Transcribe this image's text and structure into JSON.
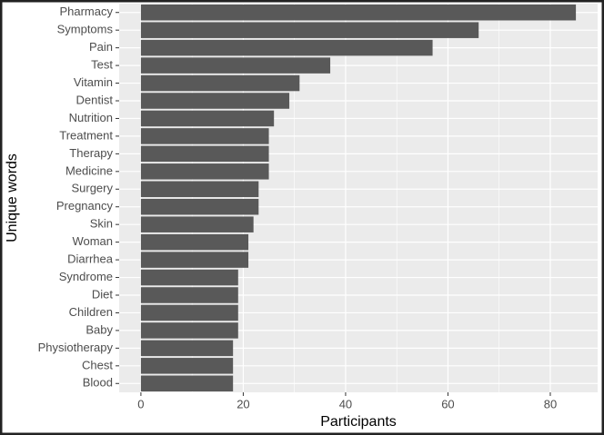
{
  "chart_data": {
    "type": "bar",
    "orientation": "horizontal",
    "x_label": "Participants",
    "y_label": "Unique words",
    "categories": [
      "Pharmacy",
      "Symptoms",
      "Pain",
      "Test",
      "Vitamin",
      "Dentist",
      "Nutrition",
      "Treatment",
      "Therapy",
      "Medicine",
      "Surgery",
      "Pregnancy",
      "Skin",
      "Woman",
      "Diarrhea",
      "Syndrome",
      "Diet",
      "Children",
      "Baby",
      "Physiotherapy",
      "Chest",
      "Blood"
    ],
    "values": [
      85,
      66,
      57,
      37,
      31,
      29,
      26,
      25,
      25,
      25,
      23,
      23,
      22,
      21,
      21,
      19,
      19,
      19,
      19,
      18,
      18,
      18
    ],
    "color": "#595959",
    "xlim": [
      -4.25,
      89.25
    ],
    "xticks": [
      0,
      20,
      40,
      60,
      80
    ],
    "minor_xticks": [
      10,
      30,
      50,
      70
    ],
    "grid": true
  }
}
